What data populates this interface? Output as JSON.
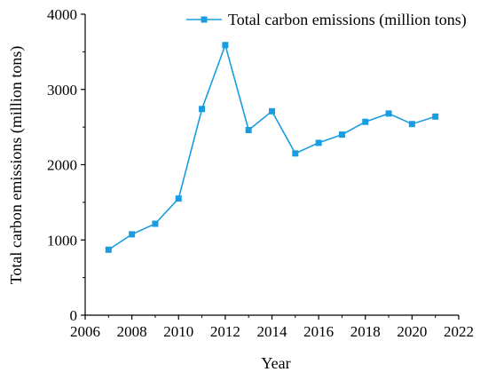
{
  "chart_data": {
    "type": "line",
    "title": "",
    "xlabel": "Year",
    "ylabel": "Total carbon emissions (million tons)",
    "xlim": [
      2006,
      2022
    ],
    "ylim": [
      0,
      4000
    ],
    "xticks": [
      2006,
      2008,
      2010,
      2012,
      2014,
      2016,
      2018,
      2020,
      2022
    ],
    "yticks": [
      0,
      1000,
      2000,
      3000,
      4000
    ],
    "grid": false,
    "legend_position": "top-right",
    "x": [
      2007,
      2008,
      2009,
      2010,
      2011,
      2012,
      2013,
      2014,
      2015,
      2016,
      2017,
      2018,
      2019,
      2020,
      2021
    ],
    "series": [
      {
        "name": "Total carbon emissions (million tons)",
        "color": "#1a9de0",
        "marker": "square",
        "values": [
          870,
          1075,
          1215,
          1550,
          2740,
          3590,
          2460,
          2710,
          2150,
          2290,
          2400,
          2570,
          2680,
          2540,
          2640
        ]
      }
    ]
  }
}
